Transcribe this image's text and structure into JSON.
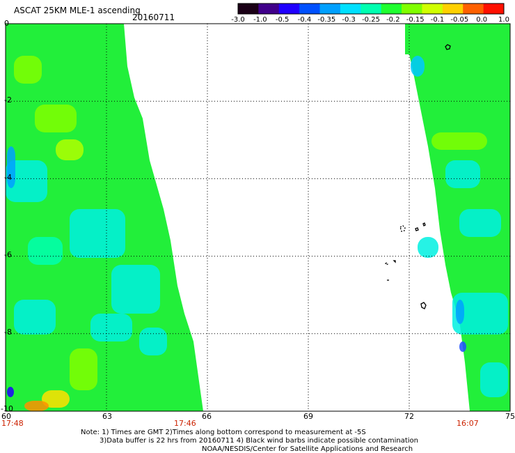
{
  "title": "ASCAT 25KM MLE-1 ascending",
  "date": "20160711",
  "colorbar": {
    "ticks": [
      "-3.0",
      "-1.0",
      "-0.5",
      "-0.4",
      "-0.35",
      "-0.3",
      "-0.25",
      "-0.2",
      "-0.15",
      "-0.1",
      "-0.05",
      "0.0",
      "1.0"
    ],
    "colors": [
      "#1a0016",
      "#40008a",
      "#2000ff",
      "#0050ff",
      "#00a0ff",
      "#00e0ff",
      "#00ffb0",
      "#20ff30",
      "#80ff00",
      "#d0ff00",
      "#ffd000",
      "#ff6000",
      "#ff1000"
    ]
  },
  "map": {
    "lat_labels": [
      "0",
      "-2",
      "-4",
      "-6",
      "-8",
      "-10"
    ],
    "lon_labels": [
      "60",
      "63",
      "66",
      "69",
      "72",
      "75"
    ],
    "lat_range": [
      -10,
      0
    ],
    "lon_range": [
      60,
      75
    ],
    "time_labels": [
      "17:48",
      "17:46",
      "16:07"
    ],
    "time_color": "#cc2200"
  },
  "notes": [
    "Note: 1) Times are GMT 2)Times along bottom correspond to measurement at -5S",
    "3)Data buffer is 22 hrs from 20160711 4) Black wind barbs indicate possible contamination",
    "NOAA/NESDIS/Center for Satellite Applications and Research"
  ]
}
